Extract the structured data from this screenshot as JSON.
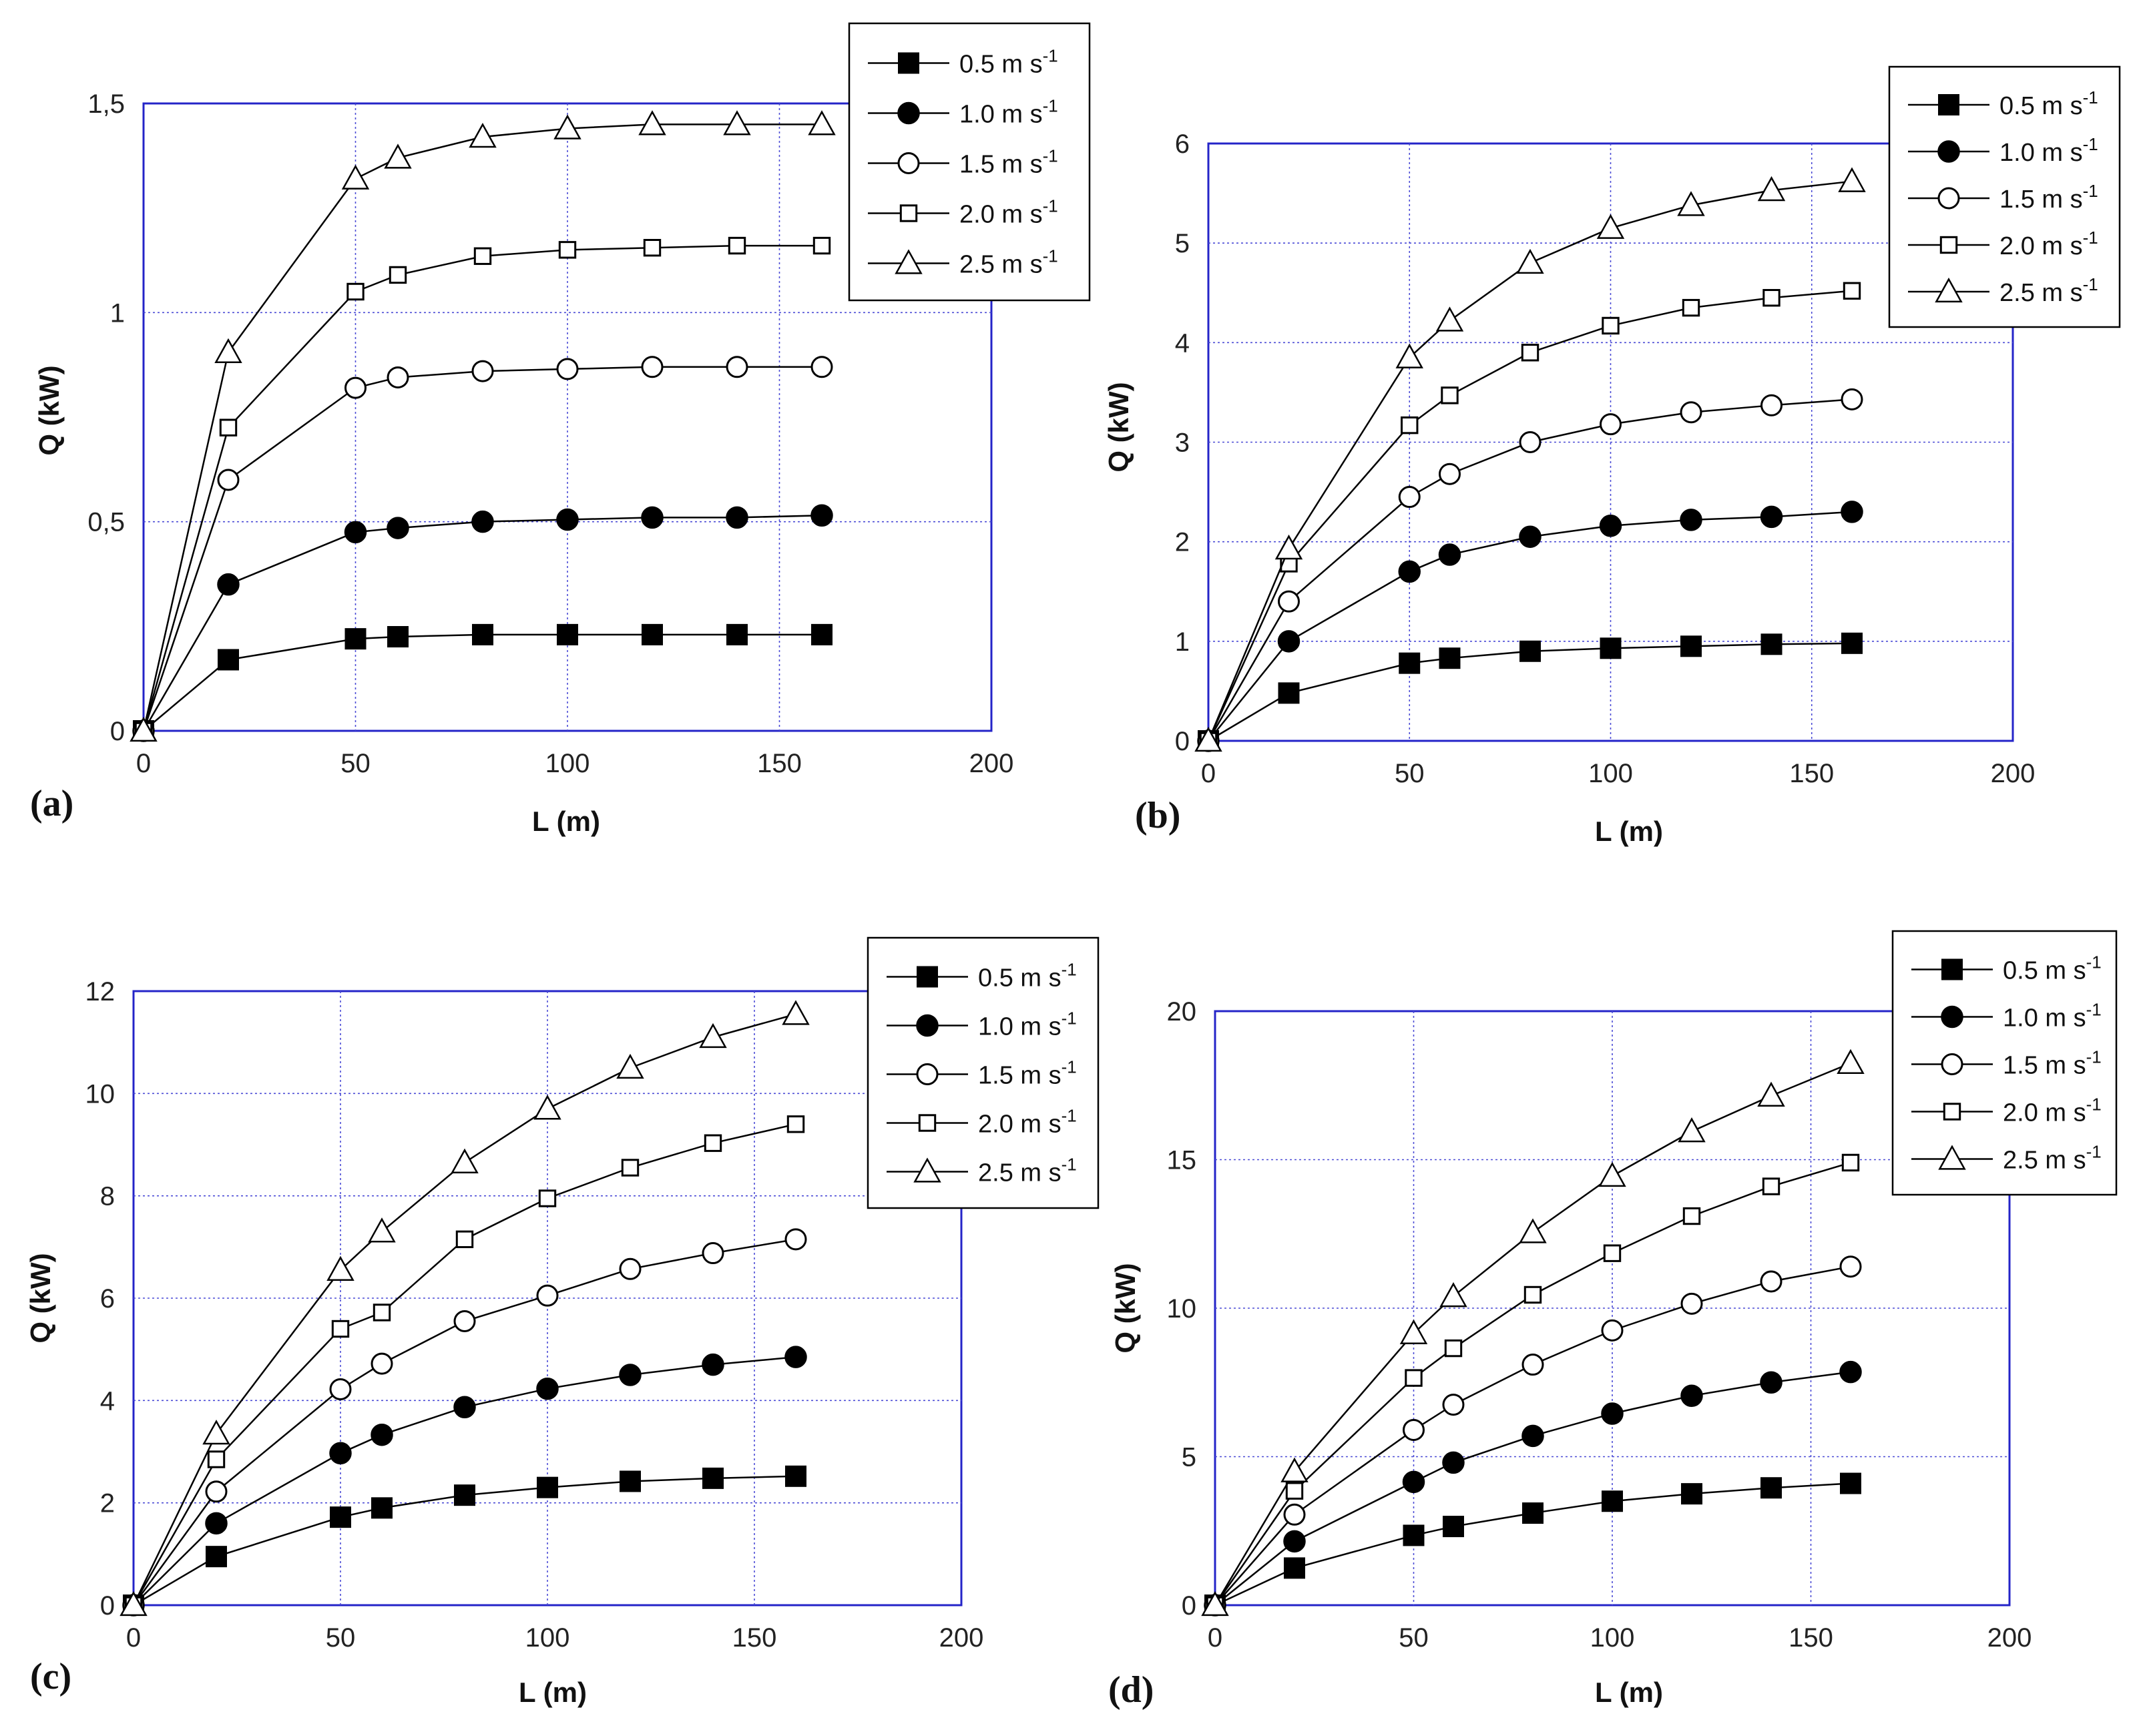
{
  "chart_data": [
    {
      "type": "line",
      "panel_label": "(a)",
      "xlabel": "L (m)",
      "ylabel": "Q (kW)",
      "xlim": [
        0,
        200
      ],
      "ylim": [
        0,
        1.5
      ],
      "xticks": [
        "0",
        "50",
        "100",
        "150",
        "200"
      ],
      "yticks": [
        "0",
        "0,5",
        "1",
        "1,5"
      ],
      "grid": true,
      "legend_position": "top-right",
      "x": [
        0,
        20,
        50,
        60,
        80,
        100,
        120,
        140,
        160
      ],
      "series": [
        {
          "name": "0.5 m s",
          "unit_exp": "-1",
          "marker": "square-filled",
          "values": [
            0,
            0.17,
            0.22,
            0.225,
            0.23,
            0.23,
            0.23,
            0.23,
            0.23
          ]
        },
        {
          "name": "1.0 m s",
          "unit_exp": "-1",
          "marker": "circle-filled",
          "values": [
            0,
            0.35,
            0.475,
            0.485,
            0.5,
            0.505,
            0.51,
            0.51,
            0.515
          ]
        },
        {
          "name": "1.5 m s",
          "unit_exp": "-1",
          "marker": "circle-open",
          "values": [
            0,
            0.6,
            0.82,
            0.845,
            0.86,
            0.865,
            0.87,
            0.87,
            0.87
          ]
        },
        {
          "name": "2.0 m s",
          "unit_exp": "-1",
          "marker": "square-open",
          "values": [
            0,
            0.725,
            1.05,
            1.09,
            1.135,
            1.15,
            1.155,
            1.16,
            1.16
          ]
        },
        {
          "name": "2.5 m s",
          "unit_exp": "-1",
          "marker": "triangle-open",
          "values": [
            0,
            0.905,
            1.32,
            1.37,
            1.42,
            1.44,
            1.45,
            1.45,
            1.45
          ]
        }
      ]
    },
    {
      "type": "line",
      "panel_label": "(b)",
      "xlabel": "L (m)",
      "ylabel": "Q (kW)",
      "xlim": [
        0,
        200
      ],
      "ylim": [
        0,
        6
      ],
      "xticks": [
        "0",
        "50",
        "100",
        "150",
        "200"
      ],
      "yticks": [
        "0",
        "1",
        "2",
        "3",
        "4",
        "5",
        "6"
      ],
      "grid": true,
      "legend_position": "top-right",
      "x": [
        0,
        20,
        50,
        60,
        80,
        100,
        120,
        140,
        160
      ],
      "series": [
        {
          "name": "0.5 m s",
          "unit_exp": "-1",
          "marker": "square-filled",
          "values": [
            0,
            0.48,
            0.78,
            0.83,
            0.9,
            0.93,
            0.95,
            0.97,
            0.98
          ]
        },
        {
          "name": "1.0 m s",
          "unit_exp": "-1",
          "marker": "circle-filled",
          "values": [
            0,
            1.0,
            1.7,
            1.87,
            2.05,
            2.16,
            2.22,
            2.25,
            2.3
          ]
        },
        {
          "name": "1.5 m s",
          "unit_exp": "-1",
          "marker": "circle-open",
          "values": [
            0,
            1.4,
            2.45,
            2.68,
            3.0,
            3.18,
            3.3,
            3.37,
            3.43
          ]
        },
        {
          "name": "2.0 m s",
          "unit_exp": "-1",
          "marker": "square-open",
          "values": [
            0,
            1.78,
            3.17,
            3.47,
            3.9,
            4.17,
            4.35,
            4.45,
            4.52
          ]
        },
        {
          "name": "2.5 m s",
          "unit_exp": "-1",
          "marker": "triangle-open",
          "values": [
            0,
            1.93,
            3.85,
            4.22,
            4.8,
            5.15,
            5.38,
            5.53,
            5.62
          ]
        }
      ]
    },
    {
      "type": "line",
      "panel_label": "(c)",
      "xlabel": "L (m)",
      "ylabel": "Q (kW)",
      "xlim": [
        0,
        200
      ],
      "ylim": [
        0,
        12
      ],
      "xticks": [
        "0",
        "50",
        "100",
        "150",
        "200"
      ],
      "yticks": [
        "0",
        "2",
        "4",
        "6",
        "8",
        "10",
        "12"
      ],
      "grid": true,
      "legend_position": "top-right",
      "x": [
        0,
        20,
        50,
        60,
        80,
        100,
        120,
        140,
        160
      ],
      "series": [
        {
          "name": "0.5 m s",
          "unit_exp": "-1",
          "marker": "square-filled",
          "values": [
            0,
            0.95,
            1.72,
            1.9,
            2.15,
            2.3,
            2.42,
            2.48,
            2.52
          ]
        },
        {
          "name": "1.0 m s",
          "unit_exp": "-1",
          "marker": "circle-filled",
          "values": [
            0,
            1.6,
            2.97,
            3.33,
            3.87,
            4.23,
            4.5,
            4.7,
            4.85
          ]
        },
        {
          "name": "1.5 m s",
          "unit_exp": "-1",
          "marker": "circle-open",
          "values": [
            0,
            2.22,
            4.22,
            4.72,
            5.55,
            6.05,
            6.57,
            6.88,
            7.15
          ]
        },
        {
          "name": "2.0 m s",
          "unit_exp": "-1",
          "marker": "square-open",
          "values": [
            0,
            2.85,
            5.4,
            5.72,
            7.15,
            7.95,
            8.55,
            9.03,
            9.4
          ]
        },
        {
          "name": "2.5 m s",
          "unit_exp": "-1",
          "marker": "triangle-open",
          "values": [
            0,
            3.35,
            6.55,
            7.3,
            8.65,
            9.7,
            10.5,
            11.1,
            11.55
          ]
        }
      ]
    },
    {
      "type": "line",
      "panel_label": "(d)",
      "xlabel": "L (m)",
      "ylabel": "Q (kW)",
      "xlim": [
        0,
        200
      ],
      "ylim": [
        0,
        20
      ],
      "xticks": [
        "0",
        "50",
        "100",
        "150",
        "200"
      ],
      "yticks": [
        "0",
        "5",
        "10",
        "15",
        "20"
      ],
      "grid": true,
      "legend_position": "top-right",
      "x": [
        0,
        20,
        50,
        60,
        80,
        100,
        120,
        140,
        160
      ],
      "series": [
        {
          "name": "0.5 m s",
          "unit_exp": "-1",
          "marker": "square-filled",
          "values": [
            0,
            1.25,
            2.35,
            2.65,
            3.1,
            3.5,
            3.75,
            3.95,
            4.1
          ]
        },
        {
          "name": "1.0 m s",
          "unit_exp": "-1",
          "marker": "circle-filled",
          "values": [
            0,
            2.15,
            4.15,
            4.8,
            5.7,
            6.45,
            7.05,
            7.5,
            7.85
          ]
        },
        {
          "name": "1.5 m s",
          "unit_exp": "-1",
          "marker": "circle-open",
          "values": [
            0,
            3.05,
            5.9,
            6.75,
            8.1,
            9.25,
            10.15,
            10.9,
            11.4
          ]
        },
        {
          "name": "2.0 m s",
          "unit_exp": "-1",
          "marker": "square-open",
          "values": [
            0,
            3.85,
            7.65,
            8.65,
            10.45,
            11.85,
            13.1,
            14.1,
            14.9
          ]
        },
        {
          "name": "2.5 m s",
          "unit_exp": "-1",
          "marker": "triangle-open",
          "values": [
            0,
            4.5,
            9.15,
            10.4,
            12.55,
            14.45,
            15.95,
            17.15,
            18.25
          ]
        }
      ]
    }
  ]
}
